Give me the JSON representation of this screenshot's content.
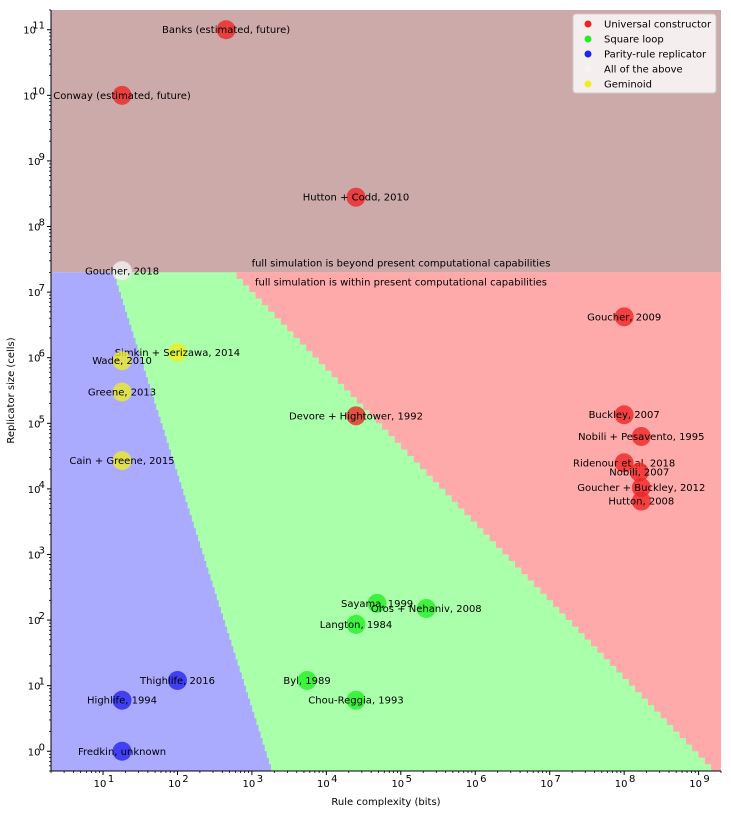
{
  "chart_data": {
    "type": "scatter",
    "title": "",
    "xlabel": "Rule complexity (bits)",
    "ylabel": "Replicator size (cells)",
    "xscale": "log",
    "yscale": "log",
    "xlim": [
      2,
      2000000000
    ],
    "ylim": [
      0.5,
      200000000000
    ],
    "x_ticks": [
      {
        "value": 10,
        "exp": "1"
      },
      {
        "value": 100,
        "exp": "2"
      },
      {
        "value": 1000,
        "exp": "3"
      },
      {
        "value": 10000,
        "exp": "4"
      },
      {
        "value": 100000,
        "exp": "5"
      },
      {
        "value": 1000000,
        "exp": "6"
      },
      {
        "value": 10000000,
        "exp": "7"
      },
      {
        "value": 100000000,
        "exp": "8"
      },
      {
        "value": 1000000000,
        "exp": "9"
      }
    ],
    "y_ticks": [
      {
        "value": 1,
        "exp": "0"
      },
      {
        "value": 10,
        "exp": "1"
      },
      {
        "value": 100,
        "exp": "2"
      },
      {
        "value": 1000,
        "exp": "3"
      },
      {
        "value": 10000,
        "exp": "4"
      },
      {
        "value": 100000,
        "exp": "5"
      },
      {
        "value": 1000000,
        "exp": "6"
      },
      {
        "value": 10000000,
        "exp": "7"
      },
      {
        "value": 100000000,
        "exp": "8"
      },
      {
        "value": 1000000000,
        "exp": "9"
      },
      {
        "value": 10000000000,
        "exp": "10"
      },
      {
        "value": 100000000000,
        "exp": "11"
      }
    ],
    "tick_base": "10",
    "threshold_y": 20000000,
    "annotations": {
      "above": "full simulation is beyond present computational capabilities",
      "below": "full simulation is within present computational capabilities"
    },
    "colors": {
      "universal": "#ee2222",
      "square": "#22ee22",
      "parity": "#2222ee",
      "all": "#f4f4f4",
      "geminoid": "#eeee22",
      "region_blue": "#aaaaff",
      "region_green": "#aaffaa",
      "region_red": "#ffaaaa",
      "region_top": "#ccaaaa"
    },
    "legend": [
      {
        "label": "Universal constructor",
        "series": "universal"
      },
      {
        "label": "Square loop",
        "series": "square"
      },
      {
        "label": "Parity-rule replicator",
        "series": "parity"
      },
      {
        "label": "All of the above",
        "series": "all"
      },
      {
        "label": "Geminoid",
        "series": "geminoid"
      }
    ],
    "points": [
      {
        "label": "Banks (estimated, future)",
        "x": 450,
        "y": 100000000000,
        "series": "universal"
      },
      {
        "label": "Conway (estimated, future)",
        "x": 18,
        "y": 10000000000,
        "series": "universal"
      },
      {
        "label": "Hutton + Codd, 2010",
        "x": 25000,
        "y": 280000000,
        "series": "universal"
      },
      {
        "label": "Goucher, 2018",
        "x": 18,
        "y": 21000000,
        "series": "all"
      },
      {
        "label": "Goucher, 2009",
        "x": 100000000,
        "y": 4200000,
        "series": "universal"
      },
      {
        "label": "Simkin + Serizawa, 2014",
        "x": 100,
        "y": 1200000,
        "series": "geminoid"
      },
      {
        "label": "Wade, 2010",
        "x": 18,
        "y": 900000,
        "series": "geminoid"
      },
      {
        "label": "Greene, 2013",
        "x": 18,
        "y": 300000,
        "series": "geminoid"
      },
      {
        "label": "Devore + Hightower, 1992",
        "x": 25000,
        "y": 130000,
        "series": "universal"
      },
      {
        "label": "Buckley, 2007",
        "x": 100000000,
        "y": 135000,
        "series": "universal"
      },
      {
        "label": "Nobili + Pesavento, 1995",
        "x": 170000000,
        "y": 63000,
        "series": "universal"
      },
      {
        "label": "Cain + Greene, 2015",
        "x": 18,
        "y": 27000,
        "series": "geminoid"
      },
      {
        "label": "Ridenour et al, 2018",
        "x": 100000000,
        "y": 25000,
        "series": "universal"
      },
      {
        "label": "Nobili, 2007",
        "x": 160000000,
        "y": 18000,
        "series": "universal"
      },
      {
        "label": "Goucher + Buckley, 2012",
        "x": 170000000,
        "y": 10500,
        "series": "universal"
      },
      {
        "label": "Hutton, 2008",
        "x": 170000000,
        "y": 6500,
        "series": "universal"
      },
      {
        "label": "Sayama, 1999",
        "x": 48000,
        "y": 180,
        "series": "square"
      },
      {
        "label": "Oros + Nehaniv, 2008",
        "x": 220000,
        "y": 150,
        "series": "square"
      },
      {
        "label": "Langton, 1984",
        "x": 25000,
        "y": 86,
        "series": "square"
      },
      {
        "label": "Thighlife, 2016",
        "x": 100,
        "y": 12,
        "series": "parity"
      },
      {
        "label": "Byl, 1989",
        "x": 5500,
        "y": 12,
        "series": "square"
      },
      {
        "label": "Highlife, 1994",
        "x": 18,
        "y": 6,
        "series": "parity"
      },
      {
        "label": "Chou-Reggia, 1993",
        "x": 25000,
        "y": 6,
        "series": "square"
      },
      {
        "label": "Fredkin, unknown",
        "x": 18,
        "y": 1,
        "series": "parity"
      }
    ]
  }
}
